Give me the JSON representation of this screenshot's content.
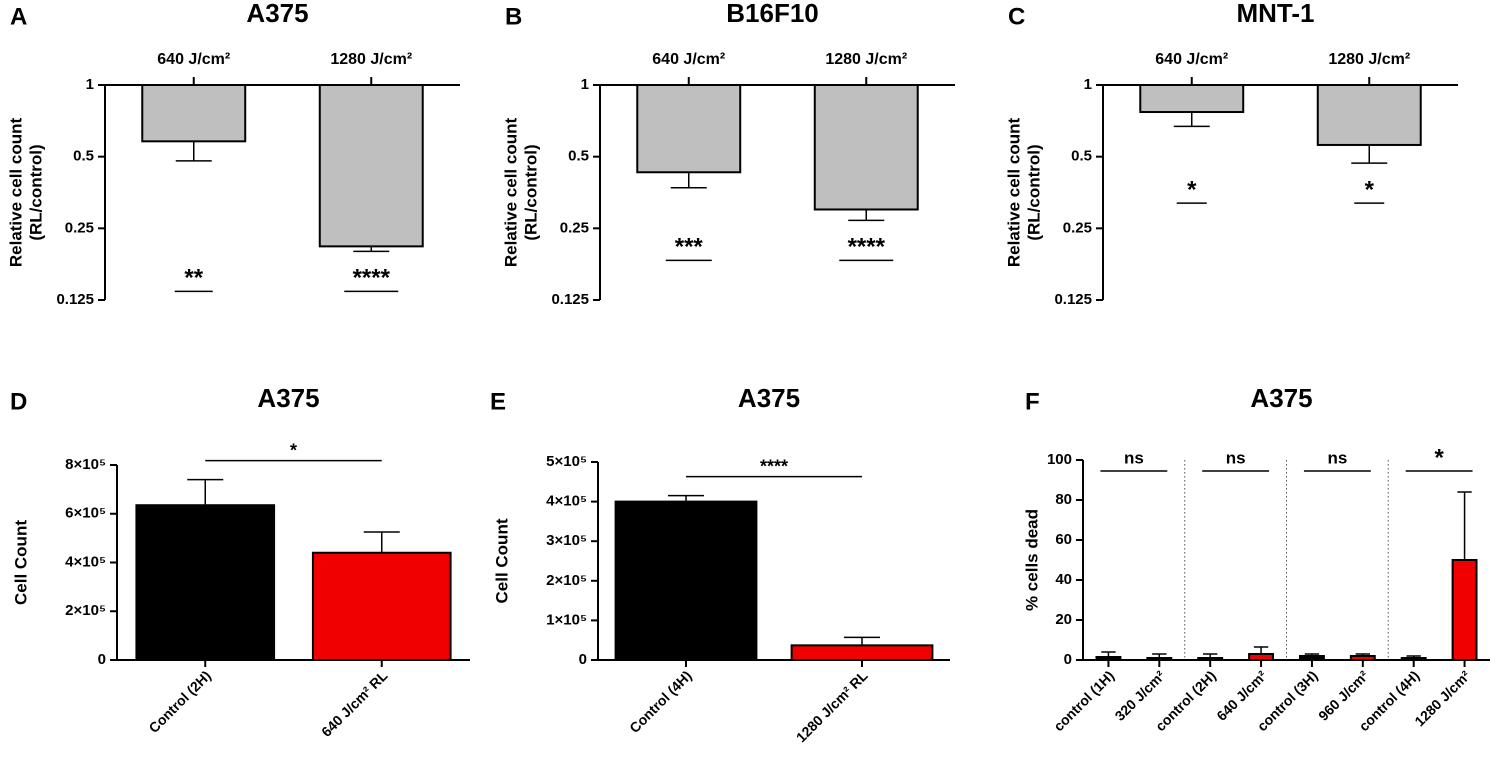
{
  "chart_data": [
    {
      "panel": "A",
      "type": "bar",
      "title": "A375",
      "ylabel": [
        "Relative cell count",
        "(RL/control)"
      ],
      "xaxis": "top",
      "log_scale": true,
      "categories": [
        "640 J/cm²",
        "1280 J/cm²"
      ],
      "values": [
        0.58,
        0.21
      ],
      "errors": [
        0.1,
        0.01
      ],
      "color": "#bfbfbf",
      "ylim": [
        0.125,
        1
      ],
      "yticks": [
        1,
        0.5,
        0.25,
        0.125
      ],
      "significance": [
        "**",
        "****"
      ]
    },
    {
      "panel": "B",
      "type": "bar",
      "title": "B16F10",
      "ylabel": [
        "Relative cell count",
        "(RL/control)"
      ],
      "xaxis": "top",
      "log_scale": true,
      "categories": [
        "640 J/cm²",
        "1280 J/cm²"
      ],
      "values": [
        0.43,
        0.3
      ],
      "errors": [
        0.06,
        0.03
      ],
      "color": "#bfbfbf",
      "ylim": [
        0.125,
        1
      ],
      "yticks": [
        1,
        0.5,
        0.25,
        0.125
      ],
      "significance": [
        "***",
        "****"
      ]
    },
    {
      "panel": "C",
      "type": "bar",
      "title": "MNT-1",
      "ylabel": [
        "Relative cell count",
        "(RL/control)"
      ],
      "xaxis": "top",
      "log_scale": true,
      "categories": [
        "640 J/cm²",
        "1280 J/cm²"
      ],
      "values": [
        0.77,
        0.56
      ],
      "errors": [
        0.1,
        0.09
      ],
      "color": "#bfbfbf",
      "ylim": [
        0.125,
        1
      ],
      "yticks": [
        1,
        0.5,
        0.25,
        0.125
      ],
      "significance": [
        "*",
        "*"
      ]
    },
    {
      "panel": "D",
      "type": "bar",
      "title": "A375",
      "ylabel": [
        "Cell Count"
      ],
      "xaxis": "bottom",
      "log_scale": false,
      "categories": [
        "Control (2H)",
        "640 J/cm² RL"
      ],
      "values": [
        635000,
        440000
      ],
      "errors": [
        105000,
        85000
      ],
      "colors": [
        "#000000",
        "#f00000"
      ],
      "ylim": [
        0,
        800000
      ],
      "yticks": [
        0,
        {
          "value": 200000,
          "label": "2×10⁵"
        },
        {
          "value": 400000,
          "label": "4×10⁵"
        },
        {
          "value": 600000,
          "label": "6×10⁵"
        },
        {
          "value": 800000,
          "label": "8×10⁵"
        }
      ],
      "significance": "*"
    },
    {
      "panel": "E",
      "type": "bar",
      "title": "A375",
      "ylabel": [
        "Cell Count"
      ],
      "xaxis": "bottom",
      "log_scale": false,
      "categories": [
        "Control (4H)",
        "1280 J/cm² RL"
      ],
      "values": [
        400000,
        37000
      ],
      "errors": [
        15000,
        20000
      ],
      "colors": [
        "#000000",
        "#f00000"
      ],
      "ylim": [
        0,
        500000
      ],
      "yticks": [
        0,
        {
          "value": 100000,
          "label": "1×10⁵"
        },
        {
          "value": 200000,
          "label": "2×10⁵"
        },
        {
          "value": 300000,
          "label": "3×10⁵"
        },
        {
          "value": 400000,
          "label": "4×10⁵"
        },
        {
          "value": 500000,
          "label": "5×10⁵"
        }
      ],
      "significance": "****"
    },
    {
      "panel": "F",
      "type": "bar",
      "title": "A375",
      "ylabel": [
        "% cells dead"
      ],
      "xaxis": "bottom",
      "log_scale": false,
      "categories": [
        "control (1H)",
        "320 J/cm²",
        "control (2H)",
        "640 J/cm²",
        "control (3H)",
        "960 J/cm²",
        "control (4H)",
        "1280 J/cm²"
      ],
      "values": [
        1.5,
        1,
        1,
        3,
        2,
        2,
        1,
        50
      ],
      "errors": [
        2.5,
        2,
        2,
        3.5,
        1,
        1,
        1,
        34
      ],
      "colors": [
        "#000000",
        "#f00000",
        "#000000",
        "#f00000",
        "#000000",
        "#f00000",
        "#000000",
        "#f00000"
      ],
      "ylim": [
        0,
        100
      ],
      "yticks": [
        0,
        20,
        40,
        60,
        80,
        100
      ],
      "significance": [
        "ns",
        "ns",
        "ns",
        "*"
      ]
    }
  ]
}
